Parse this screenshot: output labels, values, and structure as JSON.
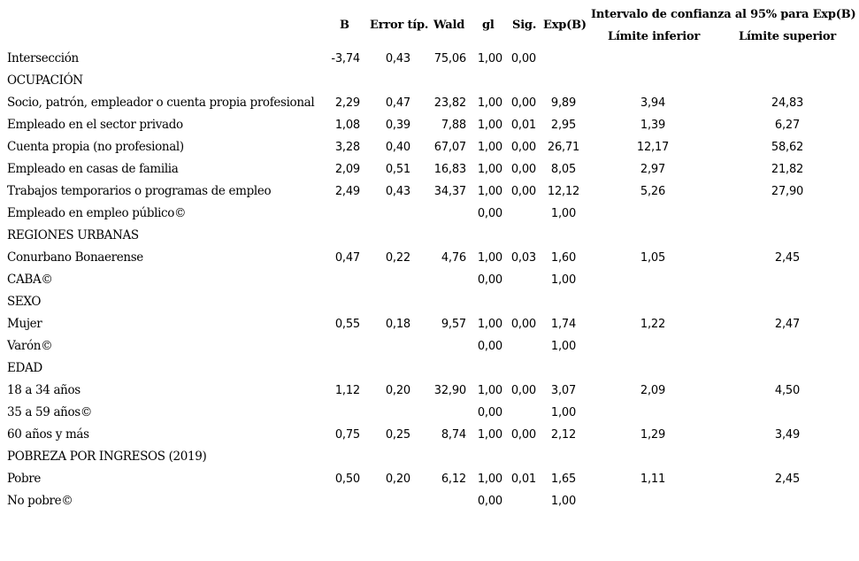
{
  "table": {
    "headers": {
      "b": "B",
      "se": "Error típ.",
      "wald": "Wald",
      "gl": "gl",
      "sig": "Sig.",
      "exp": "Exp(B)",
      "ci_group": "Intervalo de confianza al 95% para Exp(B)",
      "ci_lower": "Límite inferior",
      "ci_upper": "Límite superior"
    },
    "rows": [
      {
        "label": "Intersección",
        "b": "-3,74",
        "se": "0,43",
        "wald": "75,06",
        "gl": "1,00",
        "sig": "0,00",
        "exp": "",
        "li": "",
        "ls": ""
      },
      {
        "label": "OCUPACIÓN",
        "b": "",
        "se": "",
        "wald": "",
        "gl": "",
        "sig": "",
        "exp": "",
        "li": "",
        "ls": ""
      },
      {
        "label": "Socio, patrón, empleador o cuenta propia profesional",
        "b": "2,29",
        "se": "0,47",
        "wald": "23,82",
        "gl": "1,00",
        "sig": "0,00",
        "exp": "9,89",
        "li": "3,94",
        "ls": "24,83"
      },
      {
        "label": "Empleado en el sector privado",
        "b": "1,08",
        "se": "0,39",
        "wald": "7,88",
        "gl": "1,00",
        "sig": "0,01",
        "exp": "2,95",
        "li": "1,39",
        "ls": "6,27"
      },
      {
        "label": "Cuenta propia (no profesional)",
        "b": "3,28",
        "se": "0,40",
        "wald": "67,07",
        "gl": "1,00",
        "sig": "0,00",
        "exp": "26,71",
        "li": "12,17",
        "ls": "58,62"
      },
      {
        "label": "Empleado en casas de familia",
        "b": "2,09",
        "se": "0,51",
        "wald": "16,83",
        "gl": "1,00",
        "sig": "0,00",
        "exp": "8,05",
        "li": "2,97",
        "ls": "21,82"
      },
      {
        "label": "Trabajos temporarios o programas de empleo",
        "b": "2,49",
        "se": "0,43",
        "wald": "34,37",
        "gl": "1,00",
        "sig": "0,00",
        "exp": "12,12",
        "li": "5,26",
        "ls": "27,90"
      },
      {
        "label": "Empleado en empleo público©",
        "b": "",
        "se": "",
        "wald": "",
        "gl": "0,00",
        "sig": "",
        "exp": "1,00",
        "li": "",
        "ls": ""
      },
      {
        "label": "REGIONES URBANAS",
        "b": "",
        "se": "",
        "wald": "",
        "gl": "",
        "sig": "",
        "exp": "",
        "li": "",
        "ls": ""
      },
      {
        "label": "Conurbano Bonaerense",
        "b": "0,47",
        "se": "0,22",
        "wald": "4,76",
        "gl": "1,00",
        "sig": "0,03",
        "exp": "1,60",
        "li": "1,05",
        "ls": "2,45"
      },
      {
        "label": "CABA©",
        "b": "",
        "se": "",
        "wald": "",
        "gl": "0,00",
        "sig": "",
        "exp": "1,00",
        "li": "",
        "ls": ""
      },
      {
        "label": "SEXO",
        "b": "",
        "se": "",
        "wald": "",
        "gl": "",
        "sig": "",
        "exp": "",
        "li": "",
        "ls": ""
      },
      {
        "label": "Mujer",
        "b": "0,55",
        "se": "0,18",
        "wald": "9,57",
        "gl": "1,00",
        "sig": "0,00",
        "exp": "1,74",
        "li": "1,22",
        "ls": "2,47"
      },
      {
        "label": "Varón©",
        "b": "",
        "se": "",
        "wald": "",
        "gl": "0,00",
        "sig": "",
        "exp": "1,00",
        "li": "",
        "ls": ""
      },
      {
        "label": "EDAD",
        "b": "",
        "se": "",
        "wald": "",
        "gl": "",
        "sig": "",
        "exp": "",
        "li": "",
        "ls": ""
      },
      {
        "label": "18 a 34 años",
        "b": "1,12",
        "se": "0,20",
        "wald": "32,90",
        "gl": "1,00",
        "sig": "0,00",
        "exp": "3,07",
        "li": "2,09",
        "ls": "4,50"
      },
      {
        "label": "35 a 59 años©",
        "b": "",
        "se": "",
        "wald": "",
        "gl": "0,00",
        "sig": "",
        "exp": "1,00",
        "li": "",
        "ls": ""
      },
      {
        "label": "60 años y más",
        "b": "0,75",
        "se": "0,25",
        "wald": "8,74",
        "gl": "1,00",
        "sig": "0,00",
        "exp": "2,12",
        "li": "1,29",
        "ls": "3,49"
      },
      {
        "label": "POBREZA POR INGRESOS (2019)",
        "b": "",
        "se": "",
        "wald": "",
        "gl": "",
        "sig": "",
        "exp": "",
        "li": "",
        "ls": ""
      },
      {
        "label": "Pobre",
        "b": "0,50",
        "se": "0,20",
        "wald": "6,12",
        "gl": "1,00",
        "sig": "0,01",
        "exp": "1,65",
        "li": "1,11",
        "ls": "2,45"
      },
      {
        "label": "No pobre©",
        "b": "",
        "se": "",
        "wald": "",
        "gl": "0,00",
        "sig": "",
        "exp": "1,00",
        "li": "",
        "ls": ""
      }
    ]
  }
}
